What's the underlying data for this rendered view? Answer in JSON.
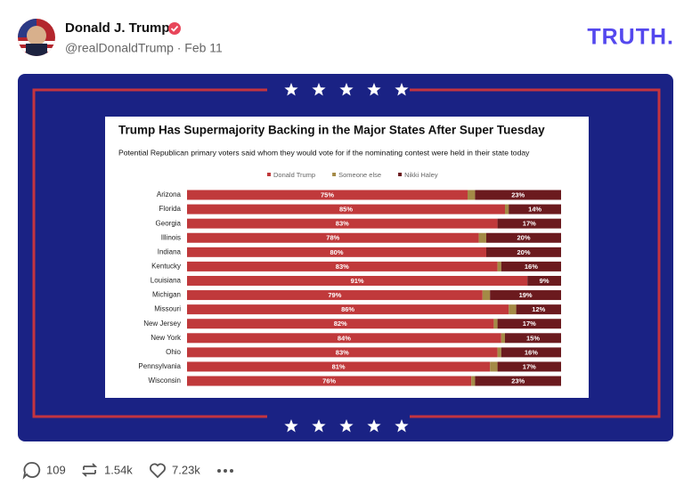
{
  "post": {
    "name": "Donald J. Trump",
    "handle": "@realDonaldTrump · Feb 11",
    "logo": "TRUTH.",
    "replies": "109",
    "reposts": "1.54k",
    "likes": "7.23k"
  },
  "chart_data": {
    "type": "bar",
    "orientation": "horizontal",
    "stacked": true,
    "title": "Trump Has Supermajority Backing in the Major States After Super Tuesday",
    "subtitle": "Potential Republican primary voters said whom they would vote for if the nominating contest were held in their state today",
    "categories": [
      "Arizona",
      "Florida",
      "Georgia",
      "Illinois",
      "Indiana",
      "Kentucky",
      "Louisiana",
      "Michigan",
      "Missouri",
      "New Jersey",
      "New York",
      "Ohio",
      "Pennsylvania",
      "Wisconsin"
    ],
    "xlim": [
      0,
      100
    ],
    "series": [
      {
        "name": "Donald Trump",
        "color": "#c0393b",
        "values": [
          75,
          85,
          83,
          78,
          80,
          83,
          91,
          79,
          86,
          82,
          84,
          83,
          81,
          76
        ],
        "value_labels": [
          "75%",
          "85%",
          "83%",
          "78%",
          "80%",
          "83%",
          "91%",
          "79%",
          "86%",
          "82%",
          "84%",
          "83%",
          "81%",
          "76%"
        ]
      },
      {
        "name": "Someone else",
        "color": "#a48a46",
        "values": [
          2,
          1,
          0,
          2,
          0,
          1,
          0,
          2,
          2,
          1,
          1,
          1,
          2,
          1
        ]
      },
      {
        "name": "Nikki Haley",
        "color": "#6b1a1e",
        "values": [
          23,
          14,
          17,
          20,
          20,
          16,
          9,
          19,
          12,
          17,
          15,
          16,
          17,
          23
        ],
        "value_labels": [
          "23%",
          "14%",
          "17%",
          "20%",
          "20%",
          "16%",
          "9%",
          "19%",
          "12%",
          "17%",
          "15%",
          "16%",
          "17%",
          "23%"
        ]
      }
    ]
  }
}
